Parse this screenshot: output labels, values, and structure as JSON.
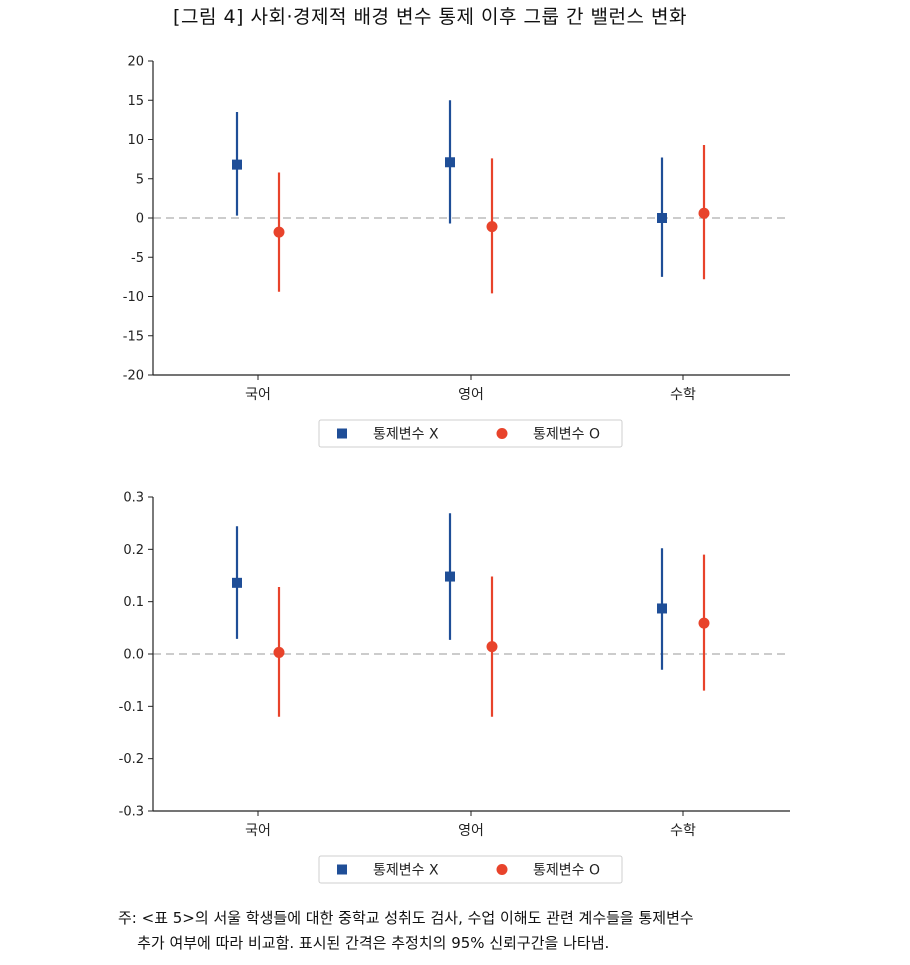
{
  "figure_title": "[그림 4] 사회·경제적 배경 변수 통제 이후 그룹 간 밸런스 변화",
  "colors": {
    "series_x": "#1f4e97",
    "series_o": "#e8432b",
    "zero_line": "#cccccc",
    "axis": "#222222"
  },
  "chart_data": [
    {
      "type": "errorbar",
      "categories": [
        "국어",
        "영어",
        "수학"
      ],
      "ylim": [
        -20,
        20
      ],
      "yticks": [
        20,
        15,
        10,
        5,
        0,
        -5,
        -10,
        -15,
        -20
      ],
      "ytick_labels": [
        "20",
        "15",
        "10",
        "5",
        "0",
        "-5",
        "-10",
        "-15",
        "-20"
      ],
      "reference_line": 0,
      "legend": {
        "placement": "bottom-center"
      },
      "series": [
        {
          "name": "통제변수 X",
          "marker": "square",
          "estimates": [
            6.8,
            7.1,
            0.0
          ],
          "lower": [
            0.3,
            -0.7,
            -7.5
          ],
          "upper": [
            13.5,
            15.0,
            7.7
          ]
        },
        {
          "name": "통제변수 O",
          "marker": "circle",
          "estimates": [
            -1.8,
            -1.1,
            0.6
          ],
          "lower": [
            -9.4,
            -9.6,
            -7.8
          ],
          "upper": [
            5.8,
            7.6,
            9.3
          ]
        }
      ]
    },
    {
      "type": "errorbar",
      "categories": [
        "국어",
        "영어",
        "수학"
      ],
      "ylim": [
        -0.3,
        0.3
      ],
      "yticks": [
        0.3,
        0.2,
        0.1,
        0.0,
        -0.1,
        -0.2,
        -0.3
      ],
      "ytick_labels": [
        "0.3",
        "0.2",
        "0.1",
        "0.0",
        "-0.1",
        "-0.2",
        "-0.3"
      ],
      "reference_line": 0,
      "legend": {
        "placement": "bottom-center"
      },
      "series": [
        {
          "name": "통제변수 X",
          "marker": "square",
          "estimates": [
            0.136,
            0.148,
            0.087
          ],
          "lower": [
            0.029,
            0.027,
            -0.03
          ],
          "upper": [
            0.244,
            0.269,
            0.202
          ]
        },
        {
          "name": "통제변수 O",
          "marker": "circle",
          "estimates": [
            0.003,
            0.014,
            0.059
          ],
          "lower": [
            -0.12,
            -0.12,
            -0.07
          ],
          "upper": [
            0.128,
            0.148,
            0.19
          ]
        }
      ]
    }
  ],
  "note": {
    "line1": "주: <표 5>의 서울 학생들에 대한 중학교 성취도 검사, 수업 이해도 관련 계수들을 통제변수",
    "line2": "    추가 여부에 따라 비교함. 표시된 간격은 추정치의 95% 신뢰구간을 나타냄."
  }
}
